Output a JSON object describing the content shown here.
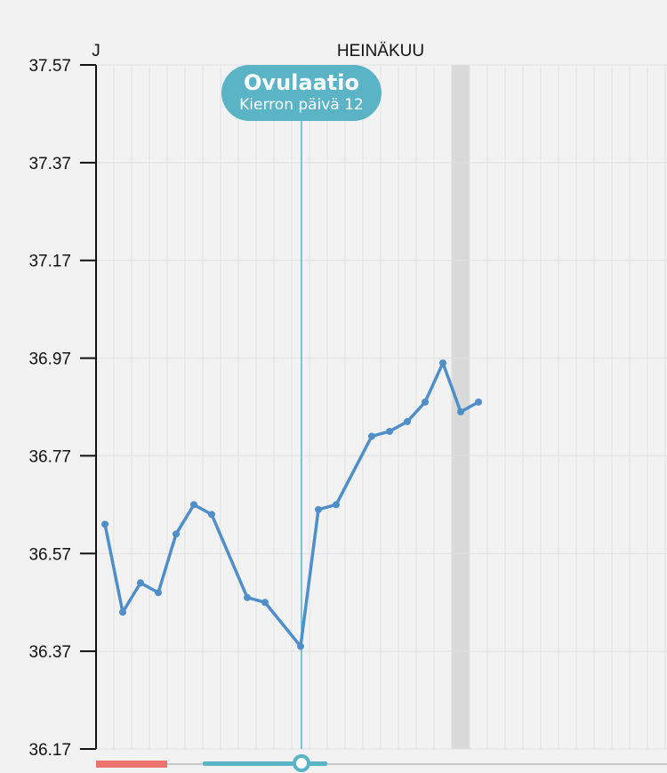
{
  "chart_data": {
    "type": "line",
    "month_labels": [
      "J",
      "HEINÄKUU"
    ],
    "y_ticks": [
      "37.57",
      "37.37",
      "37.17",
      "36.97",
      "36.77",
      "36.57",
      "36.37",
      "36.17"
    ],
    "ylim": [
      36.17,
      37.57
    ],
    "x_range": [
      1,
      32
    ],
    "grid": true,
    "highlight_day": 21,
    "ovulation": {
      "title": "Ovulaatio",
      "subtitle": "Kierron päivä 12",
      "day": 12
    },
    "series": [
      {
        "color": "#4f8fc9",
        "points": [
          [
            1,
            36.63
          ],
          [
            2,
            36.45
          ],
          [
            3,
            36.51
          ],
          [
            4,
            36.49
          ],
          [
            5,
            36.61
          ],
          [
            6,
            36.67
          ],
          [
            7,
            36.65
          ],
          [
            9,
            36.48
          ],
          [
            10,
            36.47
          ],
          [
            12,
            36.38
          ],
          [
            13,
            36.66
          ],
          [
            14,
            36.67
          ],
          [
            16,
            36.81
          ],
          [
            17,
            36.82
          ],
          [
            18,
            36.84
          ],
          [
            19,
            36.88
          ],
          [
            20,
            36.96
          ],
          [
            21,
            36.86
          ],
          [
            22,
            36.88
          ]
        ]
      }
    ],
    "colors": {
      "line": "#4f8fc9",
      "ovulation": "#5bb3c6",
      "period_bar": "#e8736f",
      "grid": "#e0e0e0",
      "highlight": "#d9d9d9"
    },
    "cycle_progress": {
      "period_days": 4,
      "fertile_days": [
        7,
        13
      ]
    }
  }
}
